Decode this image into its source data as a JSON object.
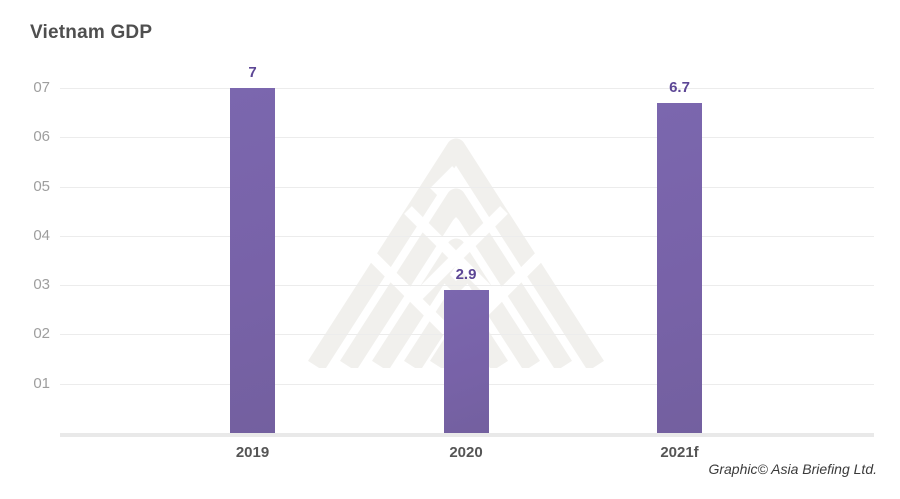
{
  "title": "Vietnam GDP",
  "credit": "Graphic© Asia Briefing Ltd.",
  "colors": {
    "bar": "#7964aa",
    "value_label": "#5c4695",
    "title": "#4f4f4f",
    "y_tick": "#9e9e9e",
    "x_tick": "#555555",
    "gridline": "#ececec",
    "axis_line": "#e9e9e9",
    "watermark": "#f1f0ed"
  },
  "chart_data": {
    "type": "bar",
    "title": "Vietnam GDP",
    "categories": [
      "2019",
      "2020",
      "2021f"
    ],
    "values": [
      7,
      2.9,
      6.7
    ],
    "value_labels": [
      "7",
      "2.9",
      "6.7"
    ],
    "y_ticks": [
      "01",
      "02",
      "03",
      "04",
      "05",
      "06",
      "07"
    ],
    "ylim": [
      0,
      7.3
    ],
    "xlabel": "",
    "ylabel": "",
    "grid": true,
    "legend": "none",
    "annotations": [
      "Graphic© Asia Briefing Ltd."
    ]
  }
}
